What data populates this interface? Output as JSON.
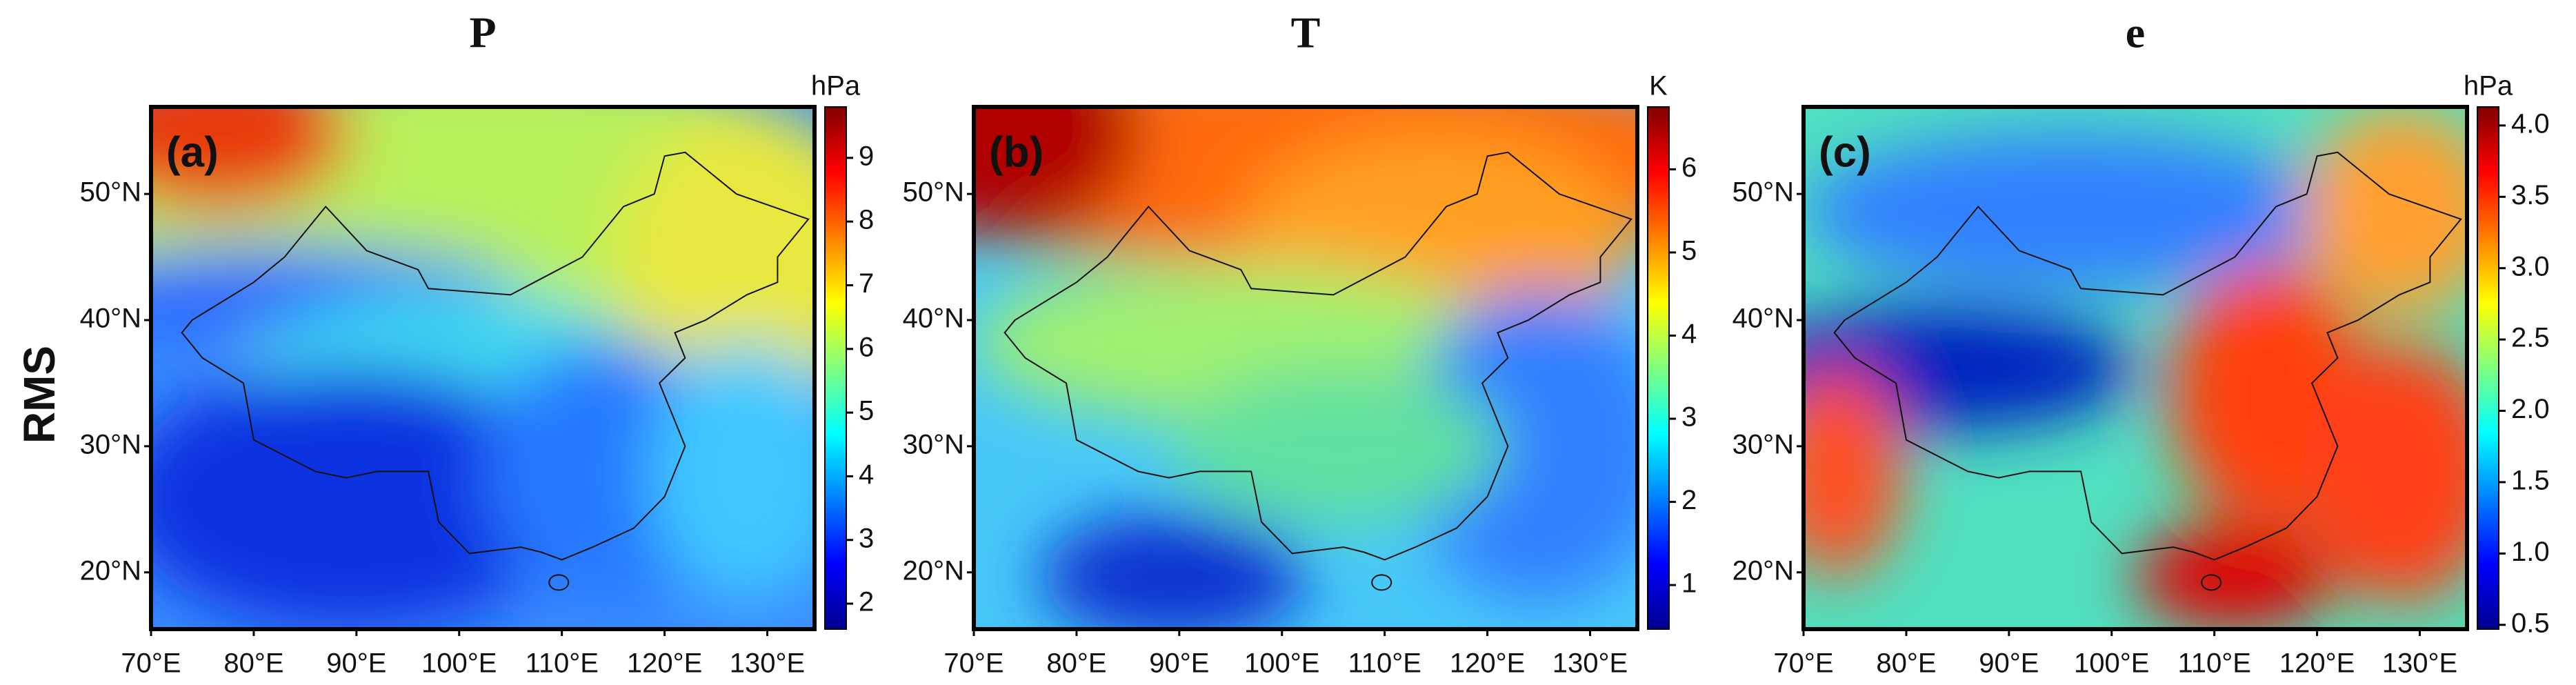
{
  "row_label": "RMS",
  "axes": {
    "xlim": [
      70,
      134.6
    ],
    "ylim": [
      15.5,
      56.9
    ],
    "xticks": [
      {
        "value": 70,
        "label": "70°E"
      },
      {
        "value": 80,
        "label": "80°E"
      },
      {
        "value": 90,
        "label": "90°E"
      },
      {
        "value": 100,
        "label": "100°E"
      },
      {
        "value": 110,
        "label": "110°E"
      },
      {
        "value": 120,
        "label": "120°E"
      },
      {
        "value": 130,
        "label": "130°E"
      }
    ],
    "yticks": [
      {
        "value": 20,
        "label": "20°N"
      },
      {
        "value": 30,
        "label": "30°N"
      },
      {
        "value": 40,
        "label": "40°N"
      },
      {
        "value": 50,
        "label": "50°N"
      }
    ]
  },
  "panels": [
    {
      "title": "P",
      "label": "(a)",
      "unit": "hPa",
      "colorbar": {
        "lim": [
          1.6,
          9.8
        ],
        "ticks": [
          2,
          3,
          4,
          5,
          6,
          7,
          8,
          9
        ]
      }
    },
    {
      "title": "T",
      "label": "(b)",
      "unit": "K",
      "colorbar": {
        "lim": [
          0.47,
          6.75
        ],
        "ticks": [
          1,
          2,
          3,
          4,
          5,
          6
        ]
      }
    },
    {
      "title": "e",
      "label": "(c)",
      "unit": "hPa",
      "colorbar": {
        "lim": [
          0.47,
          4.13
        ],
        "ticks": [
          0.5,
          {
            "value": 1.0,
            "label": "1.0"
          },
          1.5,
          {
            "value": 2.0,
            "label": "2.0"
          },
          2.5,
          {
            "value": 3.0,
            "label": "3.0"
          },
          3.5,
          {
            "value": 4.0,
            "label": "4.0"
          }
        ]
      }
    }
  ]
}
